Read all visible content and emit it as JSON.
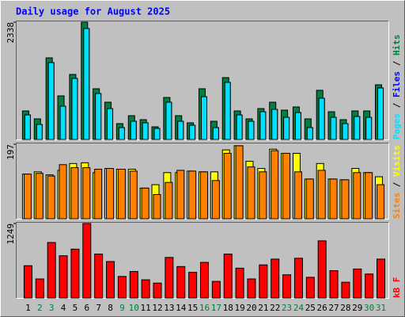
{
  "chart_data": [
    {
      "type": "bar",
      "title": "Daily usage for August 2025",
      "ylim": [
        0,
        2338
      ],
      "yticks": [
        2338
      ],
      "legend_separator": " / ",
      "series": [
        {
          "name": "Hits",
          "color": "#008040",
          "values": [
            569,
            411,
            1627,
            869,
            1296,
            2338,
            1011,
            743,
            316,
            474,
            395,
            253,
            837,
            474,
            332,
            1011,
            363,
            1233,
            569,
            411,
            616,
            743,
            585,
            648,
            411,
            980,
            553,
            395,
            569,
            569,
            1090
          ]
        },
        {
          "name": "Files",
          "color": "#0000ff",
          "values": [
            490,
            300,
            1533,
            664,
            1217,
            2212,
            916,
            616,
            237,
            363,
            332,
            221,
            743,
            363,
            284,
            853,
            237,
            1138,
            490,
            363,
            553,
            600,
            442,
            537,
            237,
            822,
            442,
            316,
            458,
            442,
            1027
          ]
        },
        {
          "name": "Pages",
          "color": "#00e0ff",
          "values": [
            490,
            300,
            1533,
            664,
            1217,
            2212,
            916,
            616,
            237,
            363,
            332,
            221,
            743,
            363,
            284,
            853,
            237,
            1138,
            490,
            363,
            553,
            600,
            442,
            537,
            237,
            822,
            442,
            316,
            458,
            442,
            1027
          ]
        }
      ]
    },
    {
      "type": "bar",
      "ylim": [
        0,
        197
      ],
      "yticks": [
        197
      ],
      "legend_separator": " / ",
      "series": [
        {
          "name": "Visits",
          "color": "#ffff00",
          "values": [
            118,
            124,
            116,
            128,
            146,
            148,
            122,
            133,
            131,
            131,
            81,
            90,
            122,
            122,
            126,
            124,
            124,
            182,
            193,
            152,
            133,
            184,
            173,
            173,
            105,
            146,
            105,
            103,
            133,
            122,
            111
          ]
        },
        {
          "name": "Sites",
          "color": "#ff8000",
          "values": [
            118,
            120,
            113,
            143,
            135,
            135,
            131,
            133,
            131,
            126,
            81,
            64,
            96,
            128,
            126,
            124,
            101,
            173,
            193,
            137,
            124,
            180,
            173,
            124,
            105,
            128,
            105,
            103,
            122,
            122,
            90
          ]
        }
      ]
    },
    {
      "type": "bar",
      "ylim": [
        0,
        1249
      ],
      "yticks": [
        1249
      ],
      "categories": [
        "1",
        "2",
        "3",
        "4",
        "5",
        "6",
        "7",
        "8",
        "9",
        "10",
        "11",
        "12",
        "13",
        "14",
        "15",
        "16",
        "17",
        "18",
        "19",
        "20",
        "21",
        "22",
        "23",
        "24",
        "25",
        "26",
        "27",
        "28",
        "29",
        "30",
        "31"
      ],
      "category_colors": [
        "#000000",
        "#008040",
        "#008040",
        "#000000",
        "#000000",
        "#000000",
        "#000000",
        "#000000",
        "#008040",
        "#008040",
        "#000000",
        "#000000",
        "#000000",
        "#000000",
        "#000000",
        "#008040",
        "#008040",
        "#000000",
        "#000000",
        "#000000",
        "#000000",
        "#000000",
        "#008040",
        "#008040",
        "#000000",
        "#000000",
        "#000000",
        "#000000",
        "#000000",
        "#008040",
        "#008040"
      ],
      "series": [
        {
          "name": "kB F",
          "color": "#ff0000",
          "values": [
            541,
            319,
            930,
            708,
            819,
            1249,
            736,
            611,
            361,
            444,
            305,
            250,
            680,
            527,
            430,
            597,
            278,
            736,
            500,
            319,
            555,
            652,
            389,
            666,
            347,
            958,
            458,
            264,
            486,
            402,
            652
          ]
        }
      ]
    }
  ]
}
